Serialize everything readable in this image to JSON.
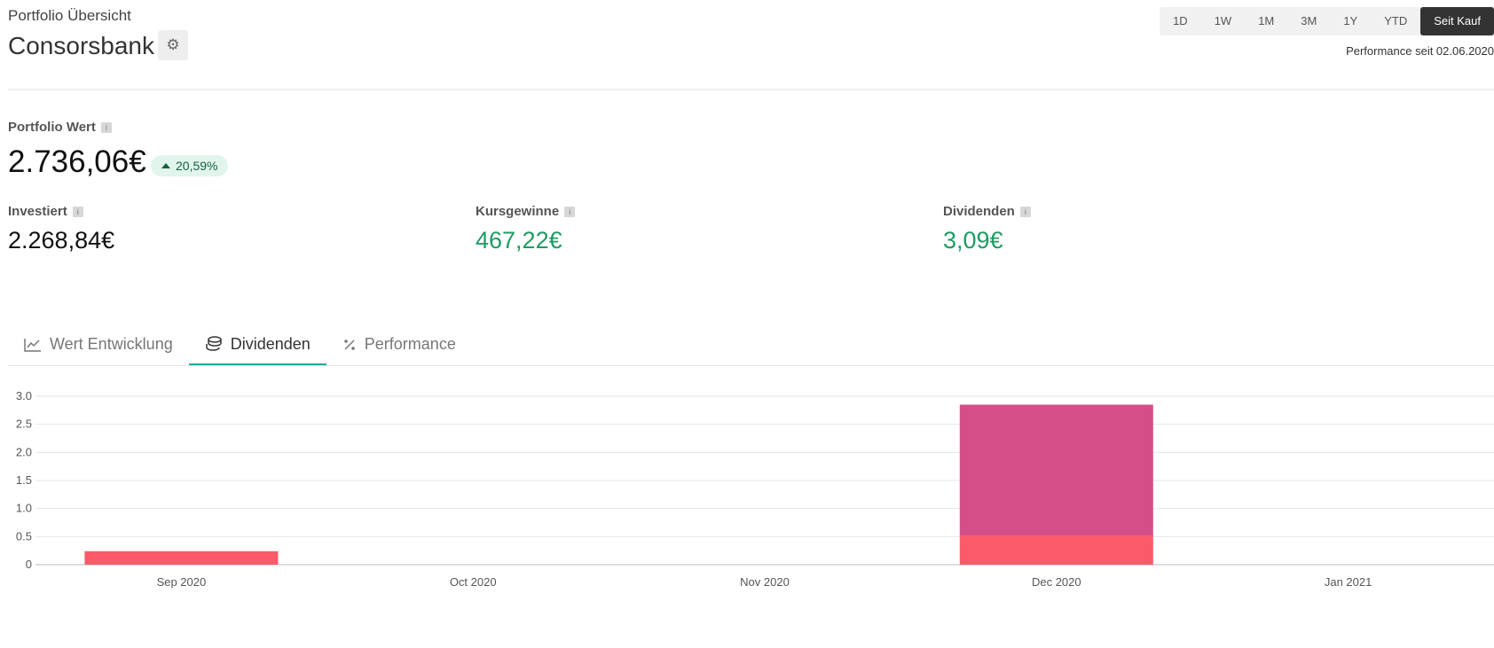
{
  "header": {
    "subtitle": "Portfolio Übersicht",
    "title": "Consorsbank",
    "settings_icon": "gear-icon",
    "time_ranges": [
      "1D",
      "1W",
      "1M",
      "3M",
      "1Y",
      "YTD",
      "Seit Kauf"
    ],
    "active_range": "Seit Kauf",
    "performance_since": "Performance seit 02.06.2020"
  },
  "summary": {
    "portfolio_label": "Portfolio Wert",
    "portfolio_value": "2.736,06€",
    "change_pct": "20,59%",
    "stats": [
      {
        "label": "Investiert",
        "value": "2.268,84€"
      },
      {
        "label": "Kursgewinne",
        "value": "467,22€"
      },
      {
        "label": "Dividenden",
        "value": "3,09€"
      }
    ],
    "info_glyph": "i"
  },
  "tabs": [
    {
      "label": "Wert Entwicklung",
      "icon": "line-chart-icon"
    },
    {
      "label": "Dividenden",
      "icon": "coins-icon"
    },
    {
      "label": "Performance",
      "icon": "percent-icon"
    }
  ],
  "active_tab": "Dividenden",
  "colors": {
    "positive": "#1e9c63",
    "accent_tab": "#20a7a0",
    "series_a": "#fa5a69",
    "series_b": "#d44f88"
  },
  "chart_data": {
    "type": "bar",
    "stacked": true,
    "categories": [
      "Sep 2020",
      "Oct 2020",
      "Nov 2020",
      "Dec 2020",
      "Jan 2021"
    ],
    "series": [
      {
        "values": [
          0.24,
          0,
          0,
          0.52,
          0
        ],
        "color": "#fa5a69"
      },
      {
        "values": [
          0,
          0,
          0,
          2.33,
          0
        ],
        "color": "#d44f88"
      }
    ],
    "y_ticks": [
      "0",
      "0.5",
      "1.0",
      "1.5",
      "2.0",
      "2.5",
      "3.0"
    ],
    "ylim": [
      0,
      3.0
    ],
    "grid": true,
    "legend": "none"
  }
}
